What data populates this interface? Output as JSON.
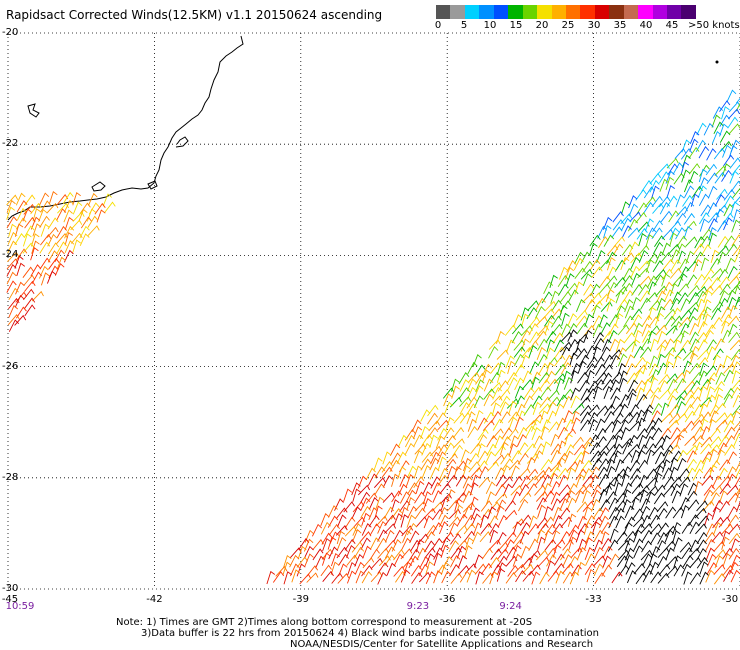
{
  "title": "Rapidsact Corrected Winds(12.5KM) v1.1 20150624 ascending",
  "colorbar": {
    "labels": [
      "0",
      "5",
      "10",
      "15",
      "20",
      "25",
      "30",
      "35",
      "40",
      "45",
      ">50 knots"
    ],
    "colors": [
      "#555555",
      "#9a9a9a",
      "#00d0ff",
      "#0090ff",
      "#0050ff",
      "#00b400",
      "#6ad400",
      "#f5e000",
      "#ffb000",
      "#ff7000",
      "#ff3000",
      "#d80000",
      "#8a3010",
      "#c46a50",
      "#ff00ff",
      "#b000e0",
      "#7000a8",
      "#4a0070"
    ]
  },
  "axes": {
    "lat_labels": [
      "-20",
      "-22",
      "-24",
      "-26",
      "-28",
      "-30"
    ],
    "lon_labels": [
      "-45",
      "-42",
      "-39",
      "-36",
      "-33",
      "-30"
    ]
  },
  "times": [
    {
      "label": "10:59",
      "lon": -45.0
    },
    {
      "label": "9:23",
      "lon": -36.6
    },
    {
      "label": "9:24",
      "lon": -34.7
    }
  ],
  "notes": [
    "Note: 1) Times are GMT 2)Times along bottom correspond to measurement at -20S",
    "3)Data buffer is 22 hrs from 20150624 4) Black wind barbs indicate possible contamination",
    "NOAA/NESDIS/Center for Satellite Applications and Research"
  ]
}
